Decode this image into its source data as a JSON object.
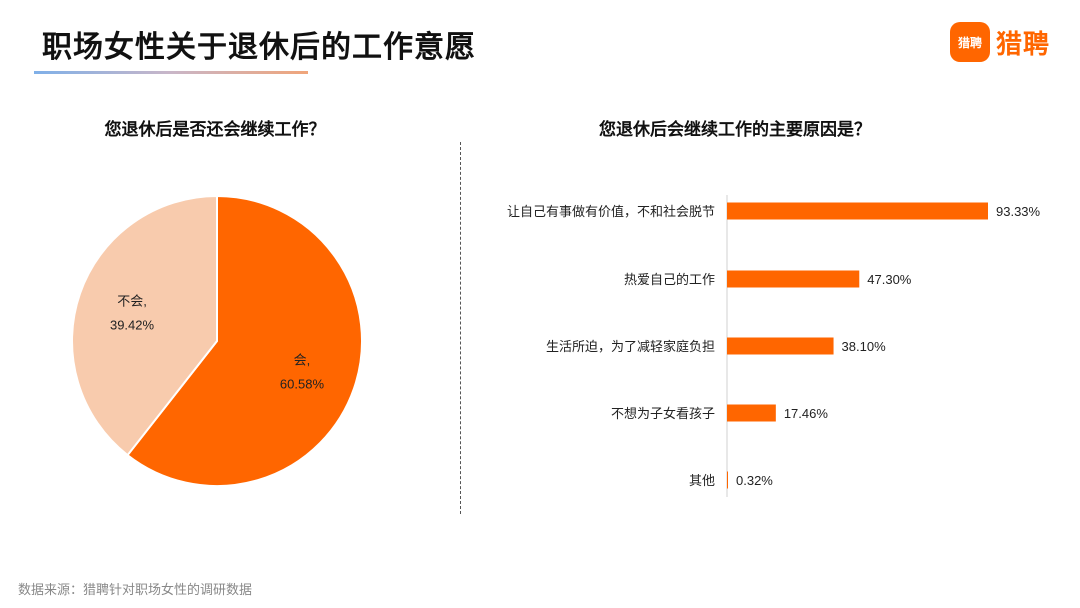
{
  "header": {
    "title": "职场女性关于退休后的工作意愿",
    "brand_badge": "猎聘",
    "brand_name": "猎聘"
  },
  "footer": {
    "source": "数据来源：猎聘针对职场女性的调研数据"
  },
  "colors": {
    "primary": "#ff6600",
    "secondary": "#f8cbad"
  },
  "chart_data": [
    {
      "type": "pie",
      "title": "您退休后是否还会继续工作？",
      "slices": [
        {
          "name": "会,",
          "value": 60.58,
          "label": "60.58%",
          "color": "#ff6600"
        },
        {
          "name": "不会,",
          "value": 39.42,
          "label": "39.42%",
          "color": "#f8cbad"
        }
      ]
    },
    {
      "type": "bar",
      "orientation": "horizontal",
      "title": "您退休后会继续工作的主要原因是？",
      "categories": [
        "让自己有事做有价值，不和社会脱节",
        "热爱自己的工作",
        "生活所迫，为了减轻家庭负担",
        "不想为子女看孩子",
        "其他"
      ],
      "values": [
        93.33,
        47.3,
        38.1,
        17.46,
        0.32
      ],
      "value_labels": [
        "93.33%",
        "47.30%",
        "38.10%",
        "17.46%",
        "0.32%"
      ],
      "xlim": [
        0,
        100
      ],
      "color": "#ff6600"
    }
  ]
}
